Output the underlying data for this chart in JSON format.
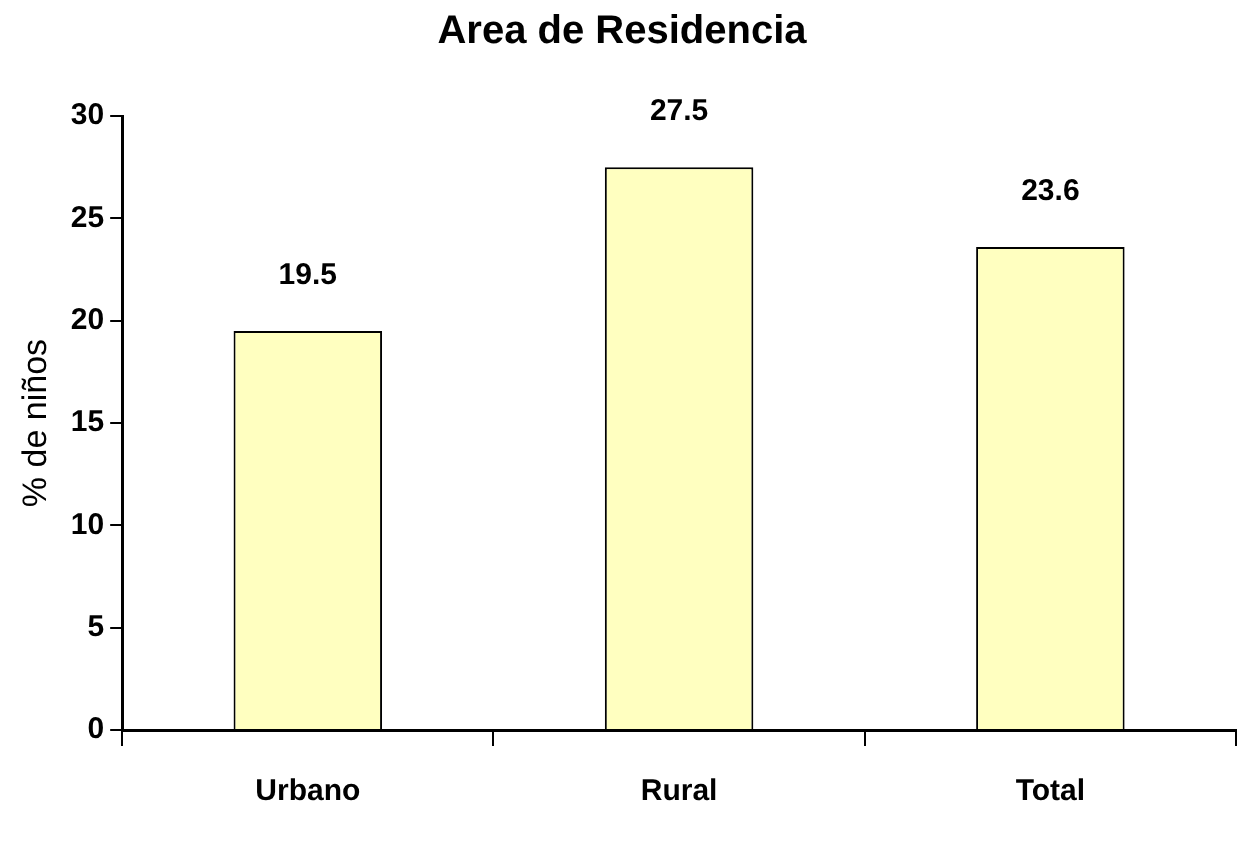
{
  "chart_data": {
    "type": "bar",
    "title": "Area de Residencia",
    "ylabel": "% de niños",
    "categories": [
      "Urbano",
      "Rural",
      "Total"
    ],
    "values": [
      19.5,
      27.5,
      23.6
    ],
    "color": "#ffffc0",
    "ylim": [
      0,
      30
    ],
    "yticks": [
      0,
      5,
      10,
      15,
      20,
      25,
      30
    ],
    "grid": false,
    "legend": false,
    "data_labels": true
  }
}
